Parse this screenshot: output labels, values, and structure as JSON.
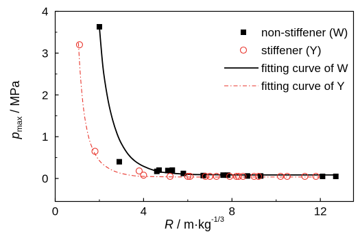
{
  "chart_data": {
    "type": "scatter",
    "title": "",
    "xlabel": {
      "main": "R",
      "unit": " / m·kg",
      "exp": "-1/3"
    },
    "ylabel": {
      "main": "p",
      "sub": "max",
      "unit": " / MPa"
    },
    "xlim": [
      0,
      13.5
    ],
    "ylim": [
      -0.55,
      4
    ],
    "xticks": [
      "0",
      "4",
      "8",
      "12"
    ],
    "xtick_values": [
      0,
      4,
      8,
      12
    ],
    "yticks": [
      "0",
      "1",
      "2",
      "3",
      "4"
    ],
    "ytick_values": [
      0,
      1,
      2,
      3,
      4
    ],
    "grid": false,
    "legend_position": "top-right",
    "series": [
      {
        "name": "non-stiffener (W)",
        "kind": "points",
        "marker": "filled-square",
        "color": "#000000",
        "points": [
          [
            2.0,
            3.63
          ],
          [
            2.9,
            0.4
          ],
          [
            4.6,
            0.17
          ],
          [
            4.7,
            0.2
          ],
          [
            5.1,
            0.19
          ],
          [
            5.3,
            0.2
          ],
          [
            5.8,
            0.12
          ],
          [
            6.7,
            0.07
          ],
          [
            7.6,
            0.08
          ],
          [
            7.8,
            0.08
          ],
          [
            8.7,
            0.06
          ],
          [
            9.3,
            0.06
          ],
          [
            12.1,
            0.05
          ],
          [
            12.7,
            0.05
          ]
        ]
      },
      {
        "name": "stiffener (Y)",
        "kind": "points",
        "marker": "hollow-circle",
        "color": "#e8332a",
        "points": [
          [
            1.1,
            3.2
          ],
          [
            1.8,
            0.65
          ],
          [
            3.8,
            0.18
          ],
          [
            4.0,
            0.08
          ],
          [
            5.2,
            0.05
          ],
          [
            6.0,
            0.05
          ],
          [
            6.1,
            0.05
          ],
          [
            6.8,
            0.05
          ],
          [
            7.0,
            0.05
          ],
          [
            7.3,
            0.05
          ],
          [
            7.9,
            0.05
          ],
          [
            8.2,
            0.05
          ],
          [
            8.3,
            0.05
          ],
          [
            8.5,
            0.05
          ],
          [
            9.0,
            0.05
          ],
          [
            9.2,
            0.05
          ],
          [
            10.2,
            0.05
          ],
          [
            10.5,
            0.05
          ],
          [
            11.3,
            0.05
          ],
          [
            11.8,
            0.05
          ]
        ]
      },
      {
        "name": "fitting curve of W",
        "kind": "curve",
        "line_style": "solid",
        "color": "#000000",
        "x": [
          2.0,
          2.1,
          2.2,
          2.4,
          2.6,
          2.8,
          3.0,
          3.3,
          3.6,
          4.0,
          4.5,
          5.0,
          6.0,
          7.0,
          8.0,
          9.0,
          10.0,
          11.0,
          12.0,
          12.7
        ],
        "y": [
          3.63,
          3.0,
          2.5,
          1.85,
          1.4,
          1.07,
          0.83,
          0.58,
          0.42,
          0.29,
          0.19,
          0.14,
          0.1,
          0.09,
          0.085,
          0.085,
          0.085,
          0.085,
          0.085,
          0.085
        ]
      },
      {
        "name": "fitting curve of Y",
        "kind": "curve",
        "line_style": "dash-dot",
        "color": "#e8332a",
        "x": [
          1.05,
          1.15,
          1.3,
          1.5,
          1.7,
          1.9,
          2.1,
          2.4,
          2.7,
          3.0,
          3.5,
          4.0,
          5.0,
          6.0,
          8.0,
          10.0,
          12.0
        ],
        "y": [
          3.25,
          2.4,
          1.6,
          1.02,
          0.7,
          0.5,
          0.37,
          0.25,
          0.17,
          0.12,
          0.07,
          0.05,
          0.04,
          0.035,
          0.035,
          0.035,
          0.035
        ]
      }
    ]
  }
}
